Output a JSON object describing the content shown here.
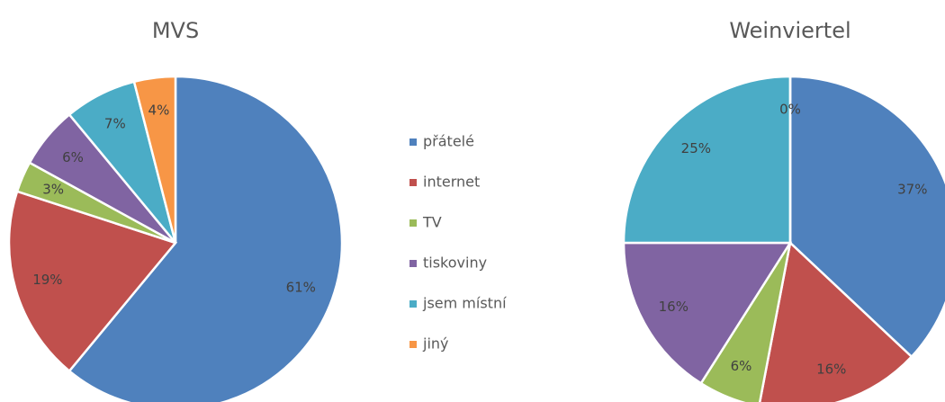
{
  "chart_data": [
    {
      "type": "pie",
      "title": "MVS",
      "categories": [
        "přátelé",
        "internet",
        "TV",
        "tiskoviny",
        "jsem místní",
        "jiný"
      ],
      "values": [
        61,
        19,
        3,
        6,
        7,
        4
      ],
      "value_labels": [
        "61%",
        "19%",
        "3%",
        "6%",
        "7%",
        "4%"
      ],
      "colors": [
        "#4f81bd",
        "#c0504d",
        "#9bbb59",
        "#8064a2",
        "#4bacc6",
        "#f79646"
      ],
      "legend": "center"
    },
    {
      "type": "pie",
      "title": "Weinviertel",
      "categories": [
        "přátelé",
        "internet",
        "TV",
        "tiskoviny",
        "jsem místní",
        "jiný"
      ],
      "values": [
        37,
        16,
        6,
        16,
        25,
        0
      ],
      "value_labels": [
        "37%",
        "16%",
        "6%",
        "16%",
        "25%",
        "0%"
      ],
      "colors": [
        "#4f81bd",
        "#c0504d",
        "#9bbb59",
        "#8064a2",
        "#4bacc6",
        "#f79646"
      ]
    }
  ]
}
